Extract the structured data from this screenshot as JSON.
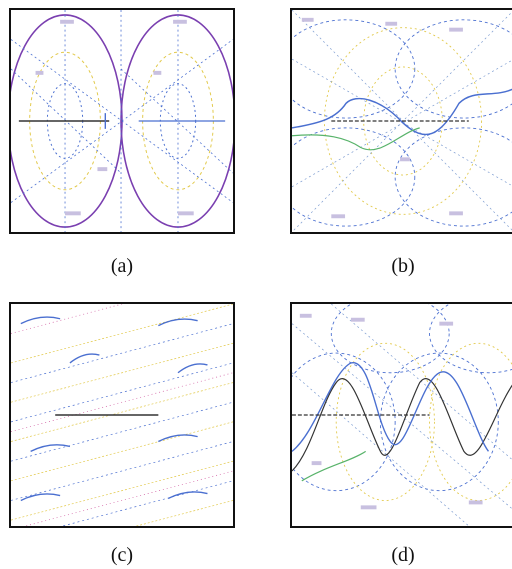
{
  "figure": {
    "panels": [
      {
        "id": "a",
        "caption": "(a)"
      },
      {
        "id": "b",
        "caption": "(b)"
      },
      {
        "id": "c",
        "caption": "(c)"
      },
      {
        "id": "d",
        "caption": "(d)"
      }
    ]
  },
  "colors": {
    "frame": "#111111",
    "purple": "#7a3fb0",
    "blue": "#4a6fd0",
    "yellow": "#e2c94a",
    "green": "#58b36a",
    "dark": "#333333",
    "pink": "#d05aa0"
  }
}
